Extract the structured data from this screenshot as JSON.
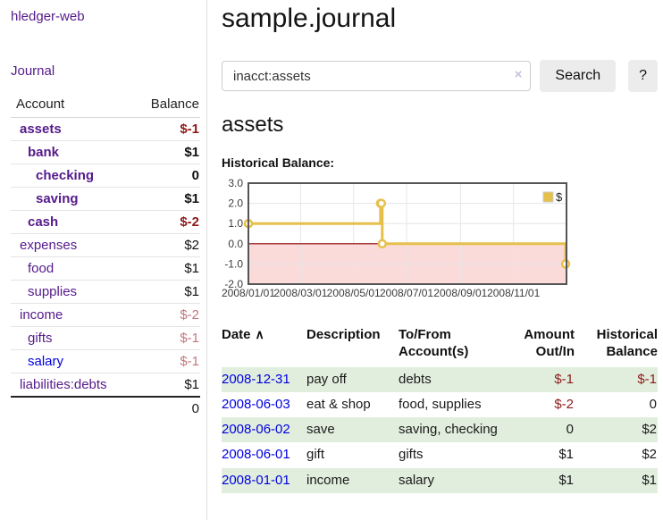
{
  "colors": {
    "link_visited": "#551a8b",
    "link_unvisited": "#0000e0",
    "negative": "#8e1919",
    "negative_muted": "#c1787f",
    "row_alt_green": "#e1eedd",
    "button_bg": "#ececec",
    "chart_series": "#e6c04b",
    "chart_negative_fill": "#fbdada",
    "chart_zero_line": "#8b0000",
    "chart_border": "#545454",
    "chart_grid": "#e6e6e6"
  },
  "sidebar": {
    "brand": "hledger-web",
    "nav": {
      "journal": "Journal"
    },
    "accounts_table": {
      "headers": {
        "account": "Account",
        "balance": "Balance"
      },
      "rows": [
        {
          "name": "assets",
          "balance": "$-1",
          "indent": 1,
          "bold": true,
          "balance_style": "negative-strong",
          "link_style": "visited"
        },
        {
          "name": "bank",
          "balance": "$1",
          "indent": 2,
          "bold": true,
          "balance_style": "normal",
          "link_style": "visited"
        },
        {
          "name": "checking",
          "balance": "0",
          "indent": 3,
          "bold": true,
          "balance_style": "normal",
          "link_style": "visited"
        },
        {
          "name": "saving",
          "balance": "$1",
          "indent": 3,
          "bold": true,
          "balance_style": "normal",
          "link_style": "visited"
        },
        {
          "name": "cash",
          "balance": "$-2",
          "indent": 2,
          "bold": true,
          "balance_style": "negative-strong",
          "link_style": "visited"
        },
        {
          "name": "expenses",
          "balance": "$2",
          "indent": 1,
          "bold": false,
          "balance_style": "normal",
          "link_style": "visited"
        },
        {
          "name": "food",
          "balance": "$1",
          "indent": 2,
          "bold": false,
          "balance_style": "normal",
          "link_style": "visited"
        },
        {
          "name": "supplies",
          "balance": "$1",
          "indent": 2,
          "bold": false,
          "balance_style": "normal",
          "link_style": "visited"
        },
        {
          "name": "income",
          "balance": "$-2",
          "indent": 1,
          "bold": false,
          "balance_style": "negative-muted",
          "link_style": "visited"
        },
        {
          "name": "gifts",
          "balance": "$-1",
          "indent": 2,
          "bold": false,
          "balance_style": "negative-muted",
          "link_style": "visited"
        },
        {
          "name": "salary",
          "balance": "$-1",
          "indent": 2,
          "bold": false,
          "balance_style": "negative-muted",
          "link_style": "unvisited"
        },
        {
          "name": "liabilities:debts",
          "balance": "$1",
          "indent": 1,
          "bold": false,
          "balance_style": "normal",
          "link_style": "visited"
        }
      ],
      "total": "0"
    }
  },
  "header": {
    "title": "sample.journal"
  },
  "search": {
    "value": "inacct:assets",
    "clear_icon": "×",
    "button_label": "Search",
    "help_label": "?"
  },
  "account_page": {
    "heading": "assets",
    "chart_label": "Historical Balance:"
  },
  "chart_data": {
    "type": "line",
    "title": "Historical Balance",
    "step": true,
    "series": [
      {
        "name": "$",
        "points": [
          [
            "2008-01-01",
            1
          ],
          [
            "2008-06-01",
            2
          ],
          [
            "2008-06-02",
            2
          ],
          [
            "2008-06-03",
            0
          ],
          [
            "2008-12-31",
            -1
          ]
        ]
      }
    ],
    "xrange": [
      "2008-01-01",
      "2009-01-01"
    ],
    "xticks": [
      "2008/01/01",
      "2008/03/01",
      "2008/05/01",
      "2008/07/01",
      "2008/09/01",
      "2008/11/01"
    ],
    "yticks": [
      3.0,
      2.0,
      1.0,
      0.0,
      -1.0,
      -2.0
    ],
    "ylim": [
      -2,
      3
    ],
    "grid": true,
    "legend_position": "top-right",
    "negative_region_shaded": true
  },
  "transactions": {
    "sort_icon": "∧",
    "headers": [
      {
        "label": "Date",
        "align": "left",
        "sorted": "asc"
      },
      {
        "label": "Description",
        "align": "left"
      },
      {
        "label": "To/From\nAccount(s)",
        "align": "left"
      },
      {
        "label": "Amount\nOut/In",
        "align": "right"
      },
      {
        "label": "Historical\nBalance",
        "align": "right"
      }
    ],
    "rows": [
      {
        "date": "2008-12-31",
        "description": "pay off",
        "accounts": "debts",
        "amount": "$-1",
        "balance": "$-1"
      },
      {
        "date": "2008-06-03",
        "description": "eat & shop",
        "accounts": "food, supplies",
        "amount": "$-2",
        "balance": "0"
      },
      {
        "date": "2008-06-02",
        "description": "save",
        "accounts": "saving, checking",
        "amount": "0",
        "balance": "$2"
      },
      {
        "date": "2008-06-01",
        "description": "gift",
        "accounts": "gifts",
        "amount": "$1",
        "balance": "$2"
      },
      {
        "date": "2008-01-01",
        "description": "income",
        "accounts": "salary",
        "amount": "$1",
        "balance": "$1"
      }
    ]
  }
}
